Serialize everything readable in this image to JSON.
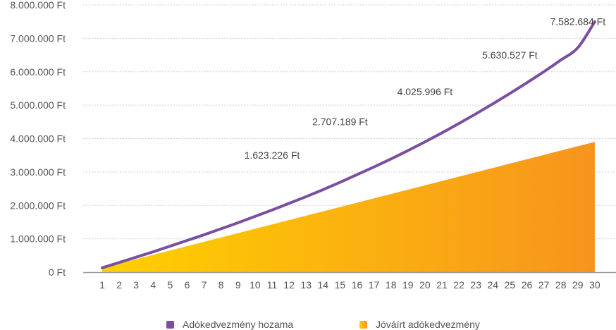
{
  "chart_data": {
    "type": "line+area",
    "title": "",
    "xlabel": "",
    "ylabel": "",
    "x": [
      1,
      2,
      3,
      4,
      5,
      6,
      7,
      8,
      9,
      10,
      11,
      12,
      13,
      14,
      15,
      16,
      17,
      18,
      19,
      20,
      21,
      22,
      23,
      24,
      25,
      26,
      27,
      28,
      29,
      30
    ],
    "ylim": [
      0,
      8000000
    ],
    "y_ticks": [
      "0 Ft",
      "1.000.000 Ft",
      "2.000.000 Ft",
      "3.000.000 Ft",
      "4.000.000 Ft",
      "5.000.000 Ft",
      "6.000.000 Ft",
      "7.000.000 Ft",
      "8.000.000 Ft"
    ],
    "grid": true,
    "legend_position": "bottom",
    "series": [
      {
        "name": "Adókedvezmény hozama",
        "type": "line",
        "color": "#7b4fa0",
        "values": [
          130000,
          290000,
          450000,
          610000,
          780000,
          950000,
          1120000,
          1300000,
          1480000,
          1670000,
          1860000,
          2060000,
          2260000,
          2470000,
          2690000,
          2920000,
          3150000,
          3390000,
          3640000,
          3900000,
          4170000,
          4450000,
          4740000,
          5040000,
          5350000,
          5670000,
          6000000,
          6350000,
          6720000,
          7500000
        ]
      },
      {
        "name": "Jóváírt adókedvezmény",
        "type": "area",
        "color_start": "#ffd000",
        "color_end": "#f7941d",
        "values": [
          130000,
          260000,
          390000,
          520000,
          650000,
          780000,
          910000,
          1040000,
          1170000,
          1300000,
          1430000,
          1560000,
          1690000,
          1820000,
          1950000,
          2080000,
          2210000,
          2340000,
          2470000,
          2600000,
          2730000,
          2860000,
          2990000,
          3120000,
          3250000,
          3380000,
          3510000,
          3640000,
          3770000,
          3900000
        ]
      }
    ],
    "annotations": [
      {
        "text": "1.623.226 Ft",
        "x": 11,
        "y": 3400000
      },
      {
        "text": "2.707.189 Ft",
        "x": 15,
        "y": 4400000
      },
      {
        "text": "4.025.996 Ft",
        "x": 20,
        "y": 5300000
      },
      {
        "text": "5.630.527 Ft",
        "x": 25,
        "y": 6400000
      },
      {
        "text": "7.582.684 Ft",
        "x": 29,
        "y": 7400000
      }
    ]
  }
}
